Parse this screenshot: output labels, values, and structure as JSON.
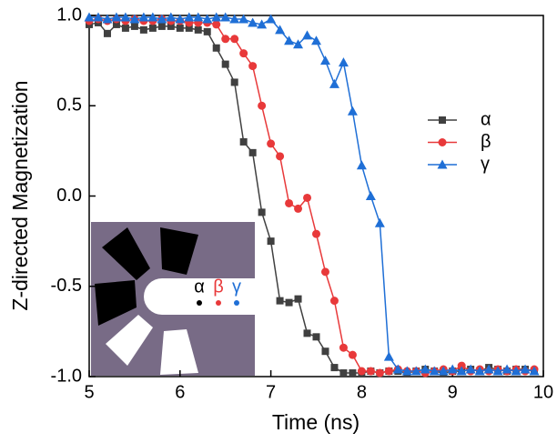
{
  "chart_data": {
    "type": "line",
    "xlabel": "Time (ns)",
    "ylabel": "Z-directed Magnetization",
    "x": [
      5.0,
      5.1,
      5.2,
      5.3,
      5.4,
      5.5,
      5.6,
      5.7,
      5.8,
      5.9,
      6.0,
      6.1,
      6.2,
      6.3,
      6.4,
      6.5,
      6.6,
      6.7,
      6.8,
      6.9,
      7.0,
      7.1,
      7.2,
      7.3,
      7.4,
      7.5,
      7.6,
      7.7,
      7.8,
      7.9,
      8.0,
      8.1,
      8.2,
      8.3,
      8.4,
      8.5,
      8.6,
      8.7,
      8.8,
      8.9,
      9.0,
      9.1,
      9.2,
      9.3,
      9.4,
      9.5,
      9.6,
      9.7,
      9.8,
      9.9
    ],
    "series": [
      {
        "name": "α",
        "color": "#404040",
        "marker": "square",
        "values": [
          0.95,
          0.96,
          0.9,
          0.95,
          0.93,
          0.94,
          0.92,
          0.93,
          0.94,
          0.94,
          0.93,
          0.93,
          0.92,
          0.91,
          0.82,
          0.73,
          0.63,
          0.3,
          0.24,
          -0.09,
          -0.25,
          -0.58,
          -0.59,
          -0.57,
          -0.76,
          -0.78,
          -0.86,
          -0.95,
          -0.98,
          -0.98,
          -0.98,
          -0.97,
          -0.98,
          -0.97,
          -0.97,
          -0.98,
          -0.97,
          -0.96,
          -0.97,
          -0.98,
          -0.97,
          -0.97,
          -0.96,
          -0.97,
          -0.95,
          -0.96,
          -0.97,
          -0.96,
          -0.96,
          -0.97
        ]
      },
      {
        "name": "β",
        "color": "#e8393a",
        "marker": "circle",
        "values": [
          0.97,
          0.98,
          0.97,
          0.98,
          0.97,
          0.98,
          0.97,
          0.97,
          0.98,
          0.97,
          0.97,
          0.96,
          0.96,
          0.96,
          0.95,
          0.87,
          0.87,
          0.79,
          0.72,
          0.5,
          0.29,
          0.22,
          -0.04,
          -0.07,
          -0.01,
          -0.21,
          -0.42,
          -0.58,
          -0.84,
          -0.88,
          -0.97,
          -0.97,
          -0.98,
          -0.97,
          -0.96,
          -0.97,
          -0.97,
          -0.98,
          -0.97,
          -0.96,
          -0.97,
          -0.94,
          -0.97,
          -0.96,
          -0.97,
          -0.96,
          -0.97,
          -0.96,
          -0.97,
          -0.96
        ]
      },
      {
        "name": "γ",
        "color": "#1f6fd6",
        "marker": "triangle",
        "values": [
          0.99,
          0.99,
          0.98,
          0.99,
          0.99,
          0.98,
          0.99,
          0.99,
          0.98,
          0.99,
          0.98,
          0.99,
          0.99,
          0.98,
          0.99,
          0.99,
          0.98,
          0.98,
          0.96,
          0.95,
          0.98,
          0.92,
          0.86,
          0.84,
          0.89,
          0.86,
          0.75,
          0.62,
          0.74,
          0.47,
          0.17,
          0.0,
          -0.15,
          -0.89,
          -0.96,
          -0.97,
          -0.97,
          -0.96,
          -0.97,
          -0.97,
          -0.96,
          -0.97,
          -0.96,
          -0.97,
          -0.96,
          -0.97,
          -0.96,
          -0.97,
          -0.96,
          -0.97
        ]
      }
    ],
    "xlim": [
      5,
      10
    ],
    "xticks": [
      5,
      6,
      7,
      8,
      9,
      10
    ],
    "ylim": [
      -1,
      1
    ],
    "yticks": [
      {
        "value": -1,
        "label": "-1.0"
      },
      {
        "value": -0.5,
        "label": "-0.5"
      },
      {
        "value": 0,
        "label": "0.0"
      },
      {
        "value": 0.5,
        "label": "0.5"
      },
      {
        "value": 1,
        "label": "1.0"
      }
    ],
    "legend": "right",
    "inset": {
      "labels": [
        "α",
        "β",
        "γ"
      ]
    }
  }
}
